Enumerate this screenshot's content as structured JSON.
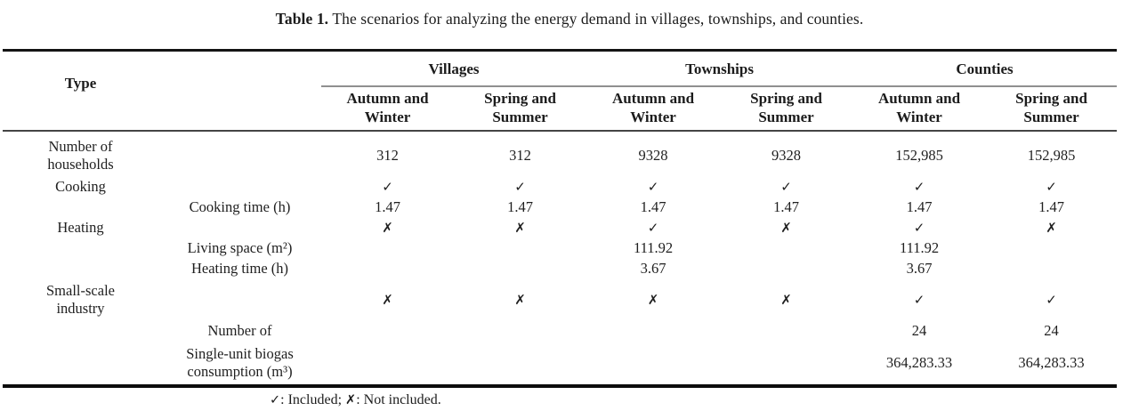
{
  "title": {
    "label": "Table 1.",
    "text": "The scenarios for analyzing the energy demand in villages, townships, and counties."
  },
  "table": {
    "type_header": "Type",
    "groups": {
      "villages": "Villages",
      "townships": "Townships",
      "counties": "Counties"
    },
    "season_autumn": "Autumn and Winter",
    "season_spring": "Spring and Summer",
    "rows": [
      {
        "type": "Number of households",
        "sub": "",
        "cells": [
          "312",
          "312",
          "9328",
          "9328",
          "152,985",
          "152,985"
        ]
      },
      {
        "type": "Cooking",
        "sub": "",
        "cells": [
          "✓",
          "✓",
          "✓",
          "✓",
          "✓",
          "✓"
        ]
      },
      {
        "type": "",
        "sub": "Cooking time (h)",
        "cells": [
          "1.47",
          "1.47",
          "1.47",
          "1.47",
          "1.47",
          "1.47"
        ]
      },
      {
        "type": "Heating",
        "sub": "",
        "cells": [
          "✗",
          "✗",
          "✓",
          "✗",
          "✓",
          "✗"
        ]
      },
      {
        "type": "",
        "sub": "Living space (m²)",
        "cells": [
          "",
          "",
          "111.92",
          "",
          "111.92",
          ""
        ]
      },
      {
        "type": "",
        "sub": "Heating time (h)",
        "cells": [
          "",
          "",
          "3.67",
          "",
          "3.67",
          ""
        ]
      },
      {
        "type": "Small-scale industry",
        "sub": "",
        "cells": [
          "✗",
          "✗",
          "✗",
          "✗",
          "✓",
          "✓"
        ]
      },
      {
        "type": "",
        "sub": "Number of",
        "cells": [
          "",
          "",
          "",
          "",
          "24",
          "24"
        ]
      },
      {
        "type": "",
        "sub": "Single-unit biogas consumption (m³)",
        "cells": [
          "",
          "",
          "",
          "",
          "364,283.33",
          "364,283.33"
        ]
      }
    ],
    "footnote": {
      "check": "✓",
      "included": ": Included; ",
      "cross": "✗",
      "not_included": ": Not included."
    }
  },
  "colors": {
    "background": "#ffffff",
    "text": "#1c1c1c",
    "rule_heavy": "#141414",
    "rule_gray": "#8f8f8f",
    "rule_mid": "#454545"
  }
}
